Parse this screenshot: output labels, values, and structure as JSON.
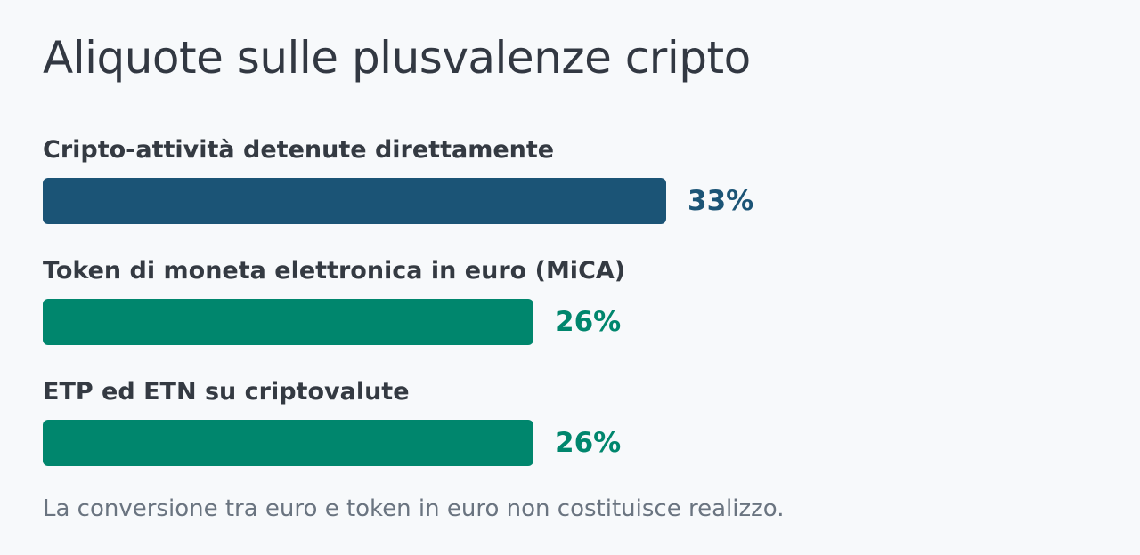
{
  "title": "Aliquote sulle plusvalenze cripto",
  "chart_data": {
    "type": "bar",
    "orientation": "horizontal",
    "categories": [
      "Cripto-attività detenute direttamente",
      "Token di moneta elettronica in euro (MiCA)",
      "ETP ed ETN su criptovalute"
    ],
    "values": [
      33,
      26,
      26
    ],
    "value_labels": [
      "33%",
      "26%",
      "26%"
    ],
    "colors": [
      "#1b5476",
      "#00866d",
      "#00866d"
    ],
    "title": "Aliquote sulle plusvalenze cripto",
    "xlabel": "",
    "ylabel": "",
    "xlim": [
      0,
      60
    ],
    "grid": false,
    "legend": "none"
  },
  "note": "La conversione tra euro e token in euro non costituisce realizzo."
}
